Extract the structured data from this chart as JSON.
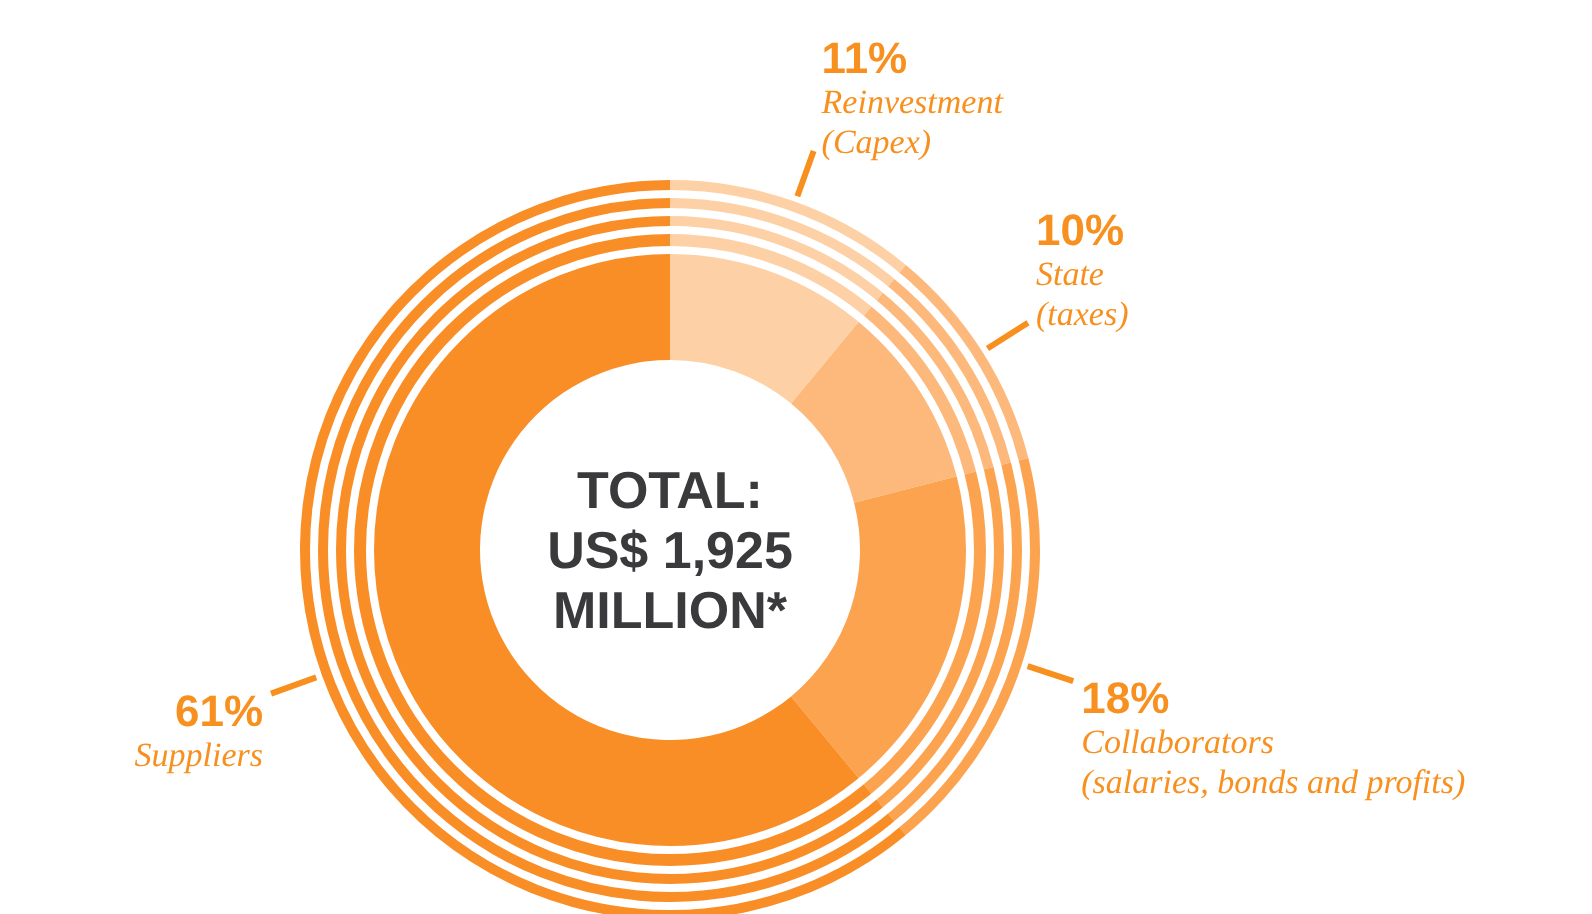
{
  "chart_data": {
    "type": "donut",
    "title": "TOTAL: US$ 1,925 MILLION*",
    "categories": [
      "Reinvestment (Capex)",
      "State (taxes)",
      "Collaborators (salaries, bonds and profits)",
      "Suppliers"
    ],
    "values": [
      11,
      10,
      18,
      61
    ],
    "value_labels": [
      "11%",
      "10%",
      "18%",
      "61%"
    ],
    "colors": [
      "#fdd1a5",
      "#fdb97b",
      "#fca34f",
      "#f98e26"
    ]
  }
}
